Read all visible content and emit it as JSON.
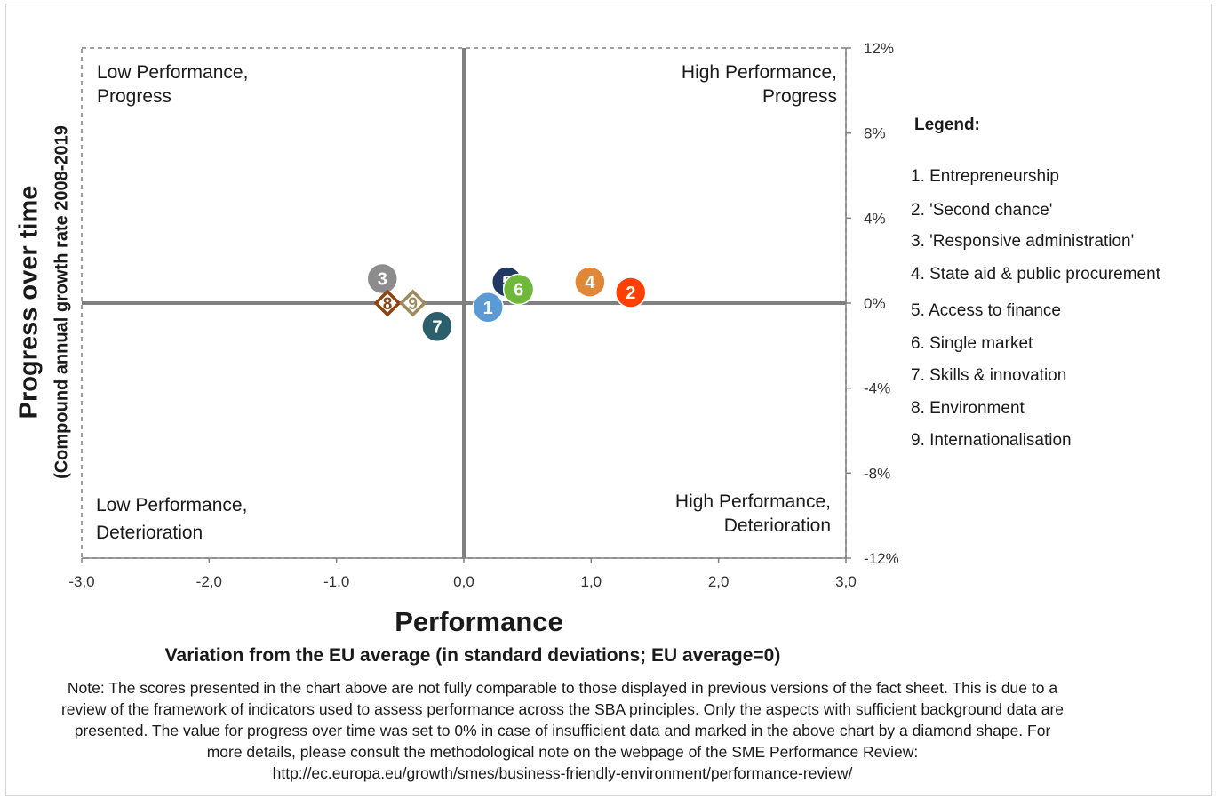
{
  "chart_data": {
    "type": "scatter",
    "xlabel": "Performance",
    "xlabel_sub": "Variation from the EU average (in standard deviations; EU average=0)",
    "ylabel": "Progress over time",
    "ylabel_sub": "(Compound annual growth rate 2008-2019",
    "xlim": [
      -3.0,
      3.0
    ],
    "ylim": [
      -12,
      12
    ],
    "x_ticks": [
      "-3,0",
      "-2,0",
      "-1,0",
      "0,0",
      "1,0",
      "2,0",
      "3,0"
    ],
    "x_tick_values": [
      -3,
      -2,
      -1,
      0,
      1,
      2,
      3
    ],
    "y_ticks": [
      "12%",
      "8%",
      "4%",
      "0%",
      "-4%",
      "-8%",
      "-12%"
    ],
    "y_tick_values": [
      12,
      8,
      4,
      0,
      -4,
      -8,
      -12
    ],
    "quadrants": {
      "top_left": [
        "Low Performance,",
        "Progress"
      ],
      "top_right": [
        "High Performance,",
        "Progress"
      ],
      "bottom_left": [
        "Low Performance,",
        "Deterioration"
      ],
      "bottom_right": [
        "High Performance,",
        "Deterioration"
      ]
    },
    "points": [
      {
        "label": "1",
        "x": 0.19,
        "y": -0.2,
        "shape": "circle",
        "color": "#5b9bd5"
      },
      {
        "label": "2",
        "x": 1.31,
        "y": 0.5,
        "shape": "circle",
        "color": "#ff4000"
      },
      {
        "label": "3",
        "x": -0.64,
        "y": 1.15,
        "shape": "circle",
        "color": "#8c8c8c"
      },
      {
        "label": "4",
        "x": 0.99,
        "y": 1.0,
        "shape": "circle",
        "color": "#e0883a"
      },
      {
        "label": "5",
        "x": 0.34,
        "y": 1.0,
        "shape": "circle",
        "color": "#1f3864"
      },
      {
        "label": "6",
        "x": 0.43,
        "y": 0.65,
        "shape": "circle",
        "color": "#70b83a"
      },
      {
        "label": "7",
        "x": -0.21,
        "y": -1.1,
        "shape": "circle",
        "color": "#2c5f6c"
      },
      {
        "label": "8",
        "x": -0.6,
        "y": 0.0,
        "shape": "diamond",
        "color": "#8b4513"
      },
      {
        "label": "9",
        "x": -0.4,
        "y": 0.0,
        "shape": "diamond",
        "color": "#9e8a5e"
      }
    ]
  },
  "legend": {
    "title": "Legend:",
    "items": [
      "1. Entrepreneurship",
      "2. 'Second chance'",
      "3. 'Responsive administration'",
      "4. State aid & public procurement",
      "5. Access to finance",
      "6. Single market",
      "7. Skills & innovation",
      "8. Environment",
      "9. Internationalisation"
    ]
  },
  "note": {
    "lines": [
      "Note: The scores presented in the chart above are not fully comparable to those displayed in previous versions of the fact sheet. This is due to a",
      "review of the framework of indicators used to assess performance across the SBA principles. Only the aspects with sufficient background data are",
      "presented. The value for progress over time was set to 0% in case of insufficient data and marked in the above chart by a diamond shape. For",
      "more details, please consult the methodological note on the webpage of the SME Performance Review:",
      "http://ec.europa.eu/growth/smes/business-friendly-environment/performance-review/"
    ]
  }
}
